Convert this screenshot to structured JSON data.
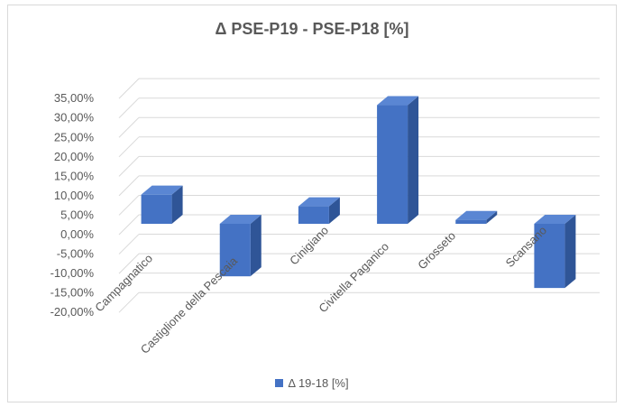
{
  "chart_data": {
    "type": "bar",
    "title": "Δ PSE-P19 - PSE-P18 [%]",
    "categories": [
      "Campagnatico",
      "Castiglione della Pescaia",
      "Cinigiano",
      "Civitella Paganico",
      "Grosseto",
      "Scansano"
    ],
    "series": [
      {
        "name": "Δ 19-18 [%]",
        "values": [
          7.5,
          -13.5,
          4.5,
          30.5,
          1.0,
          -16.5
        ],
        "color": "#4472c4"
      }
    ],
    "y_ticks": [
      "35,00%",
      "30,00%",
      "25,00%",
      "20,00%",
      "15,00%",
      "10,00%",
      "5,00%",
      "0,00%",
      "-5,00%",
      "-10,00%",
      "-15,00%",
      "-20,00%"
    ],
    "ylim": [
      -20,
      35
    ],
    "grid": true,
    "legend_position": "bottom",
    "style": "3d-clustered-column"
  }
}
